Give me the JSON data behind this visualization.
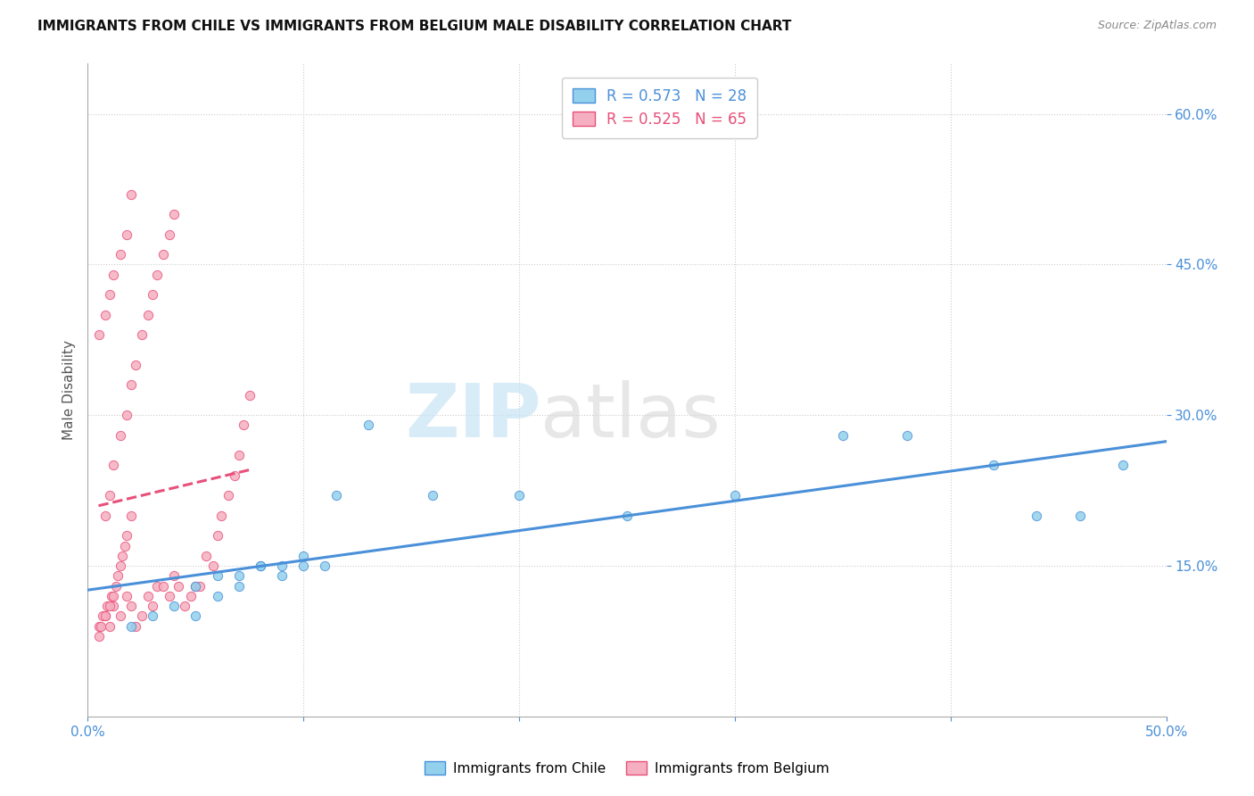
{
  "title": "IMMIGRANTS FROM CHILE VS IMMIGRANTS FROM BELGIUM MALE DISABILITY CORRELATION CHART",
  "source": "Source: ZipAtlas.com",
  "ylabel": "Male Disability",
  "ylabel_tick_vals": [
    0.15,
    0.3,
    0.45,
    0.6
  ],
  "xmin": 0.0,
  "xmax": 0.5,
  "ymin": 0.0,
  "ymax": 0.65,
  "legend_chile": "R = 0.573   N = 28",
  "legend_belgium": "R = 0.525   N = 65",
  "legend_label_chile": "Immigrants from Chile",
  "legend_label_belgium": "Immigrants from Belgium",
  "color_chile": "#92d0ec",
  "color_belgium": "#f5afc0",
  "trendline_color_chile": "#4a90d9",
  "trendline_color_belgium": "#e8507a",
  "chile_x": [
    0.02,
    0.03,
    0.04,
    0.05,
    0.06,
    0.07,
    0.08,
    0.09,
    0.1,
    0.115,
    0.13,
    0.16,
    0.2,
    0.25,
    0.3,
    0.35,
    0.38,
    0.42,
    0.44,
    0.46,
    0.05,
    0.06,
    0.07,
    0.08,
    0.09,
    0.1,
    0.11,
    0.48
  ],
  "chile_y": [
    0.09,
    0.1,
    0.11,
    0.1,
    0.12,
    0.13,
    0.15,
    0.15,
    0.16,
    0.22,
    0.29,
    0.22,
    0.22,
    0.2,
    0.22,
    0.28,
    0.28,
    0.25,
    0.2,
    0.2,
    0.13,
    0.14,
    0.14,
    0.15,
    0.14,
    0.15,
    0.15,
    0.25
  ],
  "belgium_x": [
    0.005,
    0.008,
    0.01,
    0.012,
    0.015,
    0.018,
    0.02,
    0.022,
    0.025,
    0.028,
    0.03,
    0.032,
    0.035,
    0.038,
    0.04,
    0.042,
    0.045,
    0.048,
    0.05,
    0.052,
    0.055,
    0.058,
    0.06,
    0.062,
    0.065,
    0.068,
    0.07,
    0.072,
    0.075,
    0.008,
    0.01,
    0.012,
    0.015,
    0.018,
    0.02,
    0.022,
    0.025,
    0.028,
    0.03,
    0.032,
    0.035,
    0.038,
    0.04,
    0.005,
    0.008,
    0.01,
    0.012,
    0.015,
    0.018,
    0.02,
    0.005,
    0.006,
    0.007,
    0.008,
    0.009,
    0.01,
    0.011,
    0.012,
    0.013,
    0.014,
    0.015,
    0.016,
    0.017,
    0.018,
    0.02
  ],
  "belgium_y": [
    0.09,
    0.1,
    0.09,
    0.11,
    0.1,
    0.12,
    0.11,
    0.09,
    0.1,
    0.12,
    0.11,
    0.13,
    0.13,
    0.12,
    0.14,
    0.13,
    0.11,
    0.12,
    0.13,
    0.13,
    0.16,
    0.15,
    0.18,
    0.2,
    0.22,
    0.24,
    0.26,
    0.29,
    0.32,
    0.2,
    0.22,
    0.25,
    0.28,
    0.3,
    0.33,
    0.35,
    0.38,
    0.4,
    0.42,
    0.44,
    0.46,
    0.48,
    0.5,
    0.38,
    0.4,
    0.42,
    0.44,
    0.46,
    0.48,
    0.52,
    0.08,
    0.09,
    0.1,
    0.1,
    0.11,
    0.11,
    0.12,
    0.12,
    0.13,
    0.14,
    0.15,
    0.16,
    0.17,
    0.18,
    0.2
  ]
}
